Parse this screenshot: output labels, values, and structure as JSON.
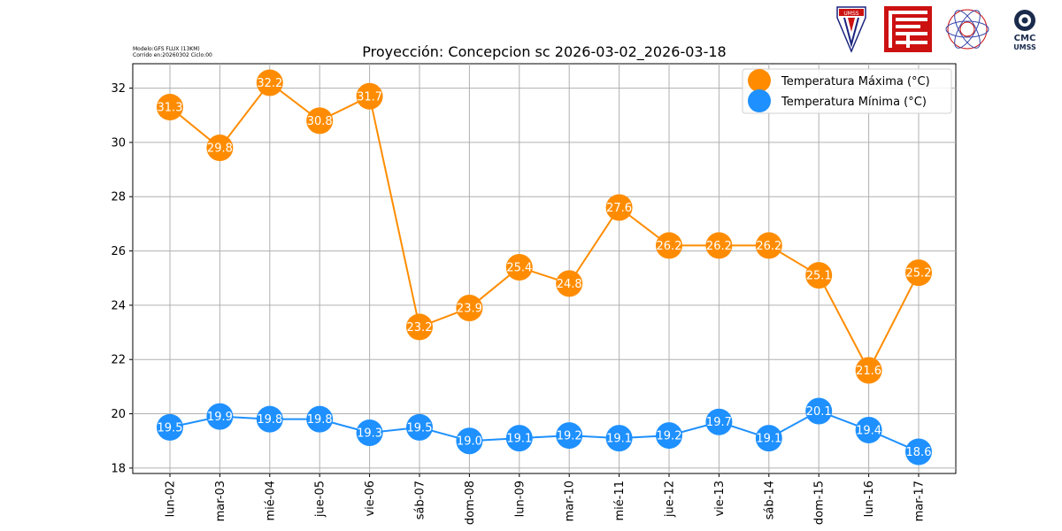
{
  "model_info": {
    "line1": "Modelo:GFS FLUX (13KM)",
    "line2": "Corrido en:20260302 Ciclo:00"
  },
  "logos": {
    "umss": "UMSS",
    "cmc_line1": "CMC",
    "cmc_line2": "UMSS"
  },
  "colors": {
    "max": "#ff8c00",
    "min": "#1e90ff",
    "grid": "#b0b0b0",
    "logo_red": "#cc1111"
  },
  "chart_data": {
    "type": "line",
    "title": "Proyección: Concepcion sc 2026-03-02_2026-03-18",
    "xlabel": "",
    "ylabel": "",
    "ylim": [
      17.8,
      32.9
    ],
    "yticks": [
      18,
      20,
      22,
      24,
      26,
      28,
      30,
      32
    ],
    "grid": true,
    "legend_position": "top-right",
    "categories": [
      "lun-02",
      "mar-03",
      "mié-04",
      "jue-05",
      "vie-06",
      "sáb-07",
      "dom-08",
      "lun-09",
      "mar-10",
      "mié-11",
      "jue-12",
      "vie-13",
      "sáb-14",
      "dom-15",
      "lun-16",
      "mar-17"
    ],
    "series": [
      {
        "name": "Temperatura Máxima  (°C)",
        "color": "#ff8c00",
        "values": [
          31.3,
          29.8,
          32.2,
          30.8,
          31.7,
          23.2,
          23.9,
          25.4,
          24.8,
          27.6,
          26.2,
          26.2,
          26.2,
          25.1,
          21.6,
          25.2
        ],
        "labels": [
          "31.3",
          "29.8",
          "32.2",
          "30.8",
          "31.7",
          "23.2",
          "23.9",
          "25.4",
          "24.8",
          "27.6",
          "26.2",
          "26.2",
          "26.2",
          "25.1",
          "21.6",
          "25.2"
        ]
      },
      {
        "name": "Temperatura Mínima  (°C)",
        "color": "#1e90ff",
        "values": [
          19.5,
          19.9,
          19.8,
          19.8,
          19.3,
          19.5,
          19.0,
          19.1,
          19.2,
          19.1,
          19.2,
          19.7,
          19.1,
          20.1,
          19.4,
          18.6
        ],
        "labels": [
          "19.5",
          "19.9",
          "19.8",
          "19.8",
          "19.3",
          "19.5",
          "19.0",
          "19.1",
          "19.2",
          "19.1",
          "19.2",
          "19.7",
          "19.1",
          "20.1",
          "19.4",
          "18.6"
        ]
      }
    ]
  }
}
